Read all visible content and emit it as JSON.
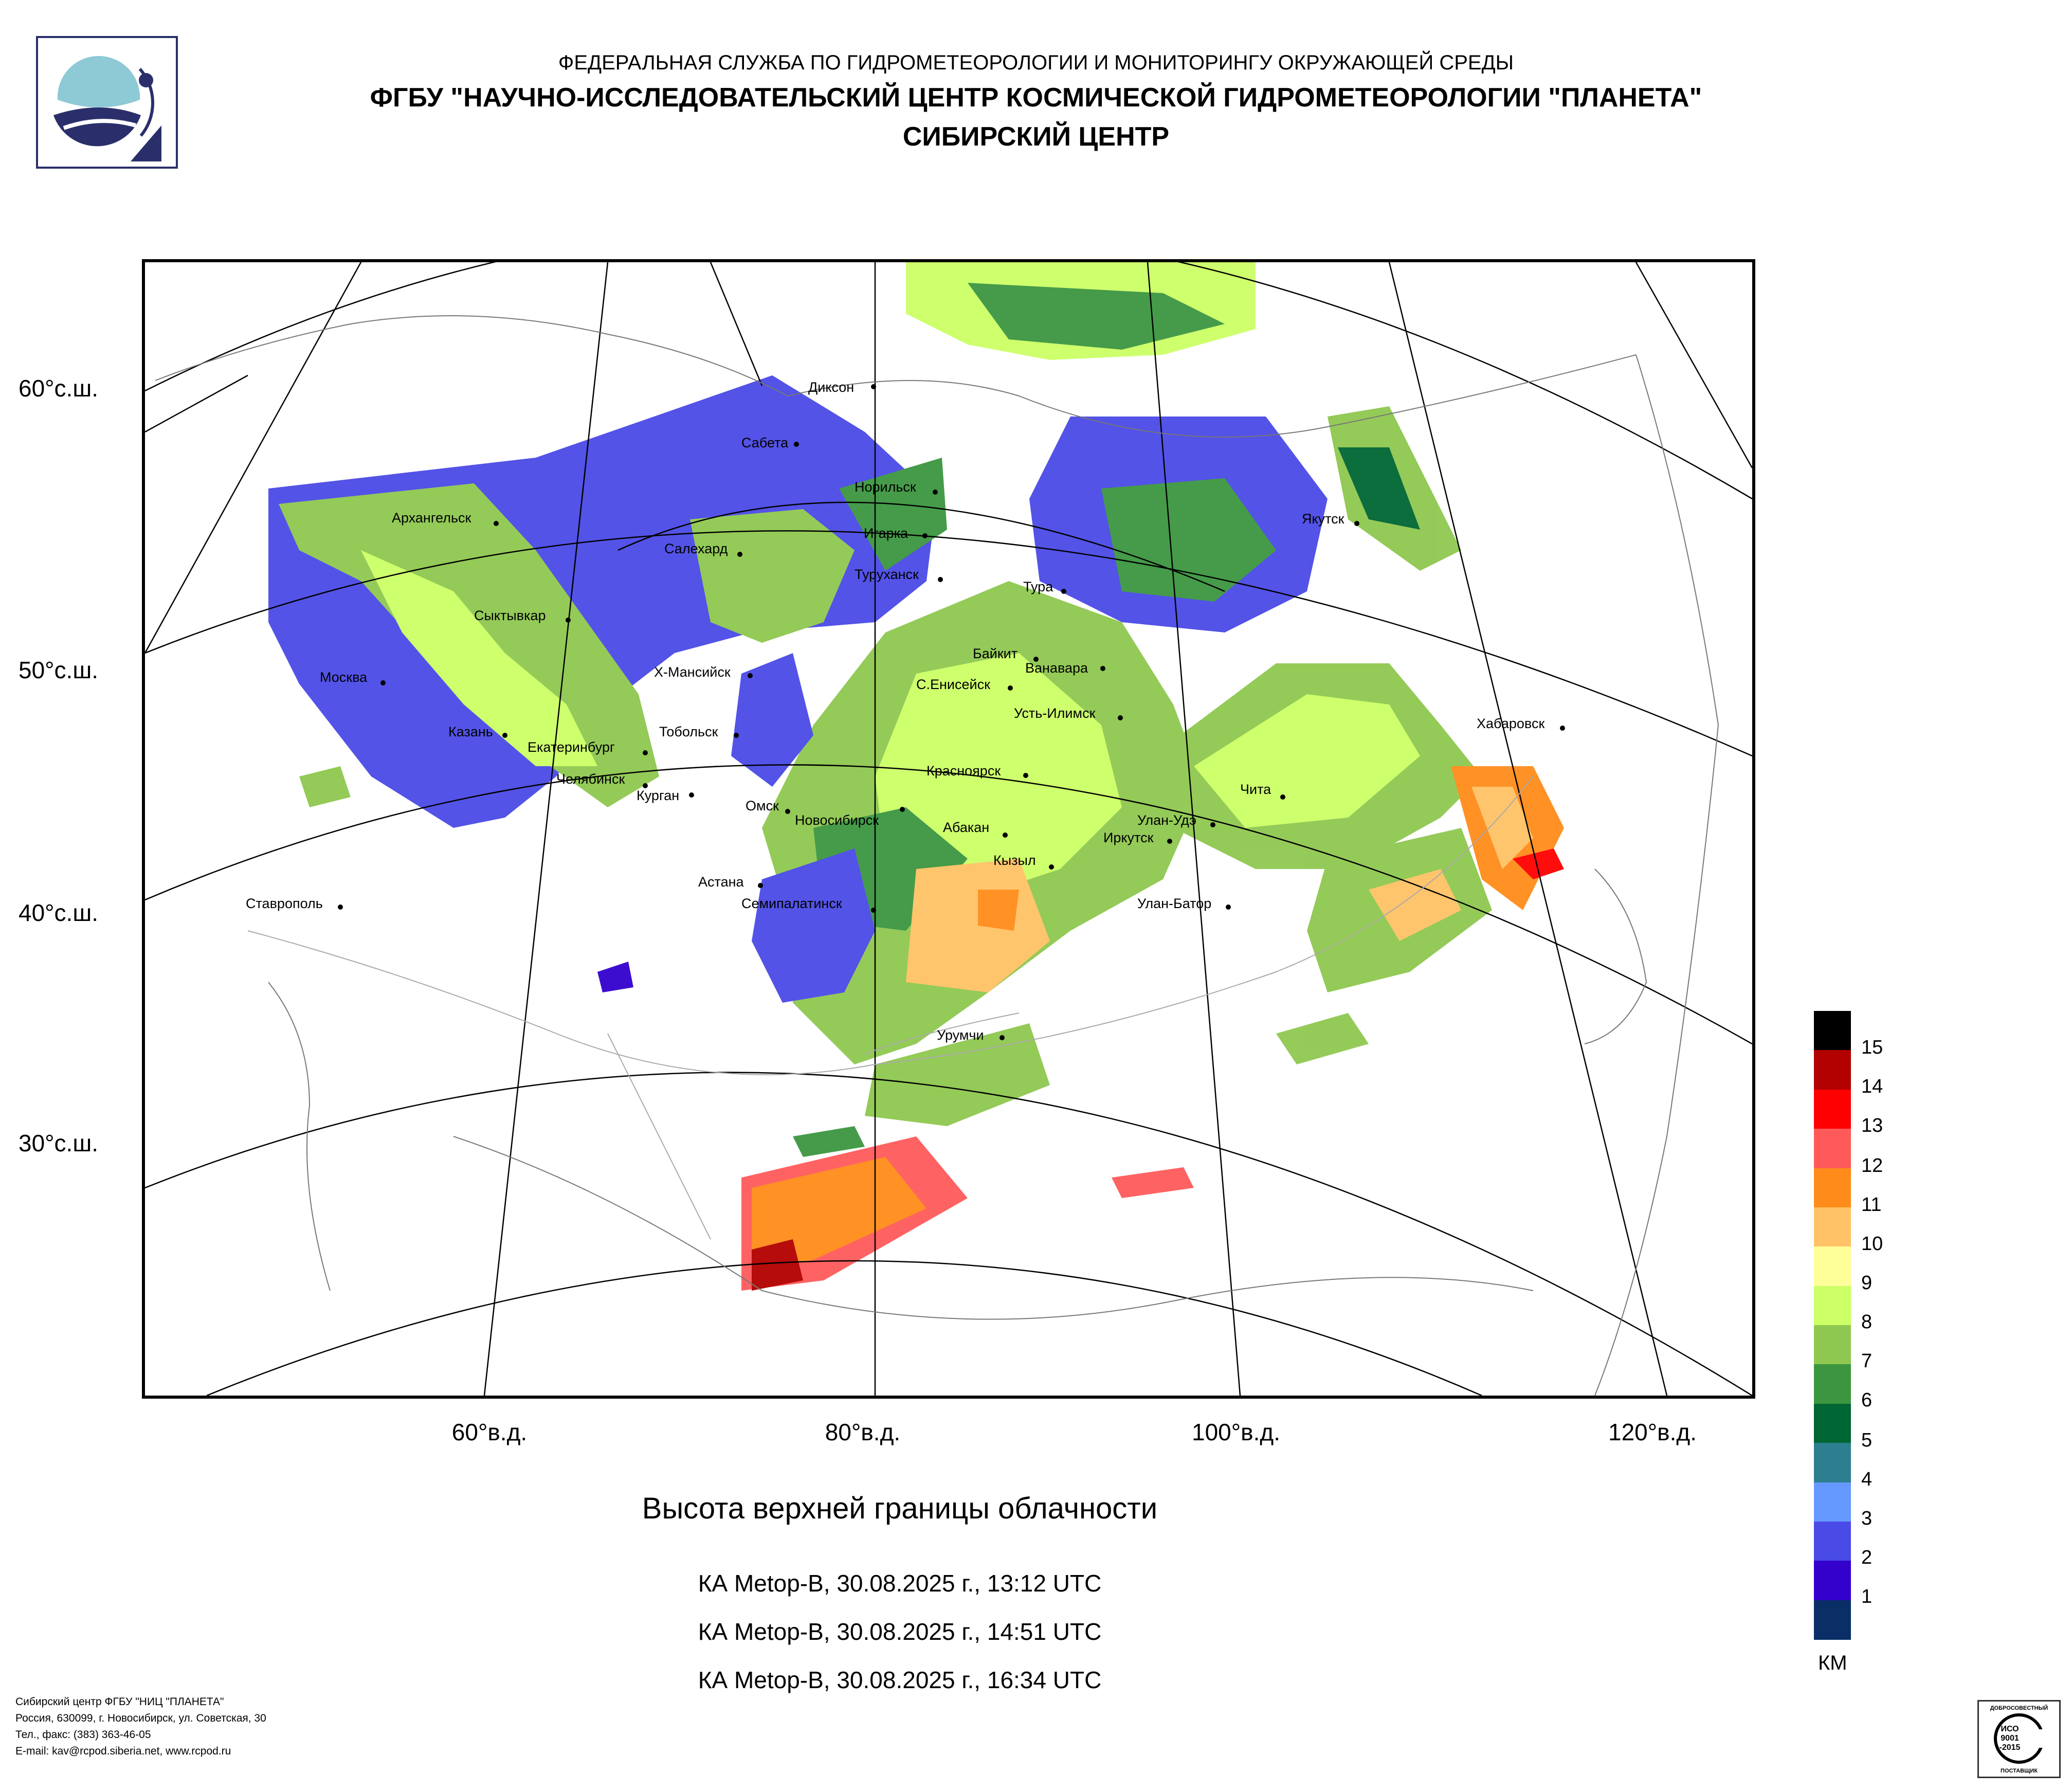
{
  "header": {
    "line1": "ФЕДЕРАЛЬНАЯ СЛУЖБА ПО ГИДРОМЕТЕОРОЛОГИИ И МОНИТОРИНГУ ОКРУЖАЮЩЕЙ СРЕДЫ",
    "line2": "ФГБУ \"НАУЧНО-ИССЛЕДОВАТЕЛЬСКИЙ ЦЕНТР КОСМИЧЕСКОЙ ГИДРОМЕТЕОРОЛОГИИ \"ПЛАНЕТА\"",
    "line3": "СИБИРСКИЙ ЦЕНТР"
  },
  "map": {
    "lat_labels": [
      "60°с.ш.",
      "50°с.ш.",
      "40°с.ш.",
      "30°с.ш."
    ],
    "lon_labels": [
      "60°в.д.",
      "80°в.д.",
      "100°в.д.",
      "120°в.д."
    ],
    "cities": {
      "dikson": "Диксон",
      "sabeta": "Сабета",
      "norilsk": "Норильск",
      "igarka": "Игарка",
      "turukhansk": "Туруханск",
      "tura": "Тура",
      "yakutsk": "Якутск",
      "arkhangelsk": "Архангельск",
      "salekhard": "Салехард",
      "syktyvkar": "Сыктывкар",
      "moskva": "Москва",
      "khmansiysk": "Х-Мансийск",
      "baikit": "Байкит",
      "vanavara": "Ванавара",
      "s_eniseysk": "С.Енисейск",
      "ust_ilimsk": "Усть-Илимск",
      "khabarovsk": "Хабаровск",
      "kazan": "Казань",
      "ekaterinburg": "Екатеринбург",
      "tobolsk": "Тобольск",
      "krasnoyarsk": "Красноярск",
      "chelyabinsk": "Челябинск",
      "kurgan": "Курган",
      "chita": "Чита",
      "omsk": "Омск",
      "novosibirsk": "Новосибирск",
      "abakan": "Абакан",
      "ulan_ude": "Улан-Удэ",
      "irkutsk": "Иркутск",
      "kyzyl": "Кызыл",
      "astana": "Астана",
      "stavropol": "Ставрополь",
      "semipalatinsk": "Семипалатинск",
      "ulan_bator": "Улан-Батор",
      "urumchi": "Урумчи"
    }
  },
  "caption": {
    "title": "Высота верхней границы облачности",
    "passes": [
      "КА Metop-B, 30.08.2025 г., 13:12 UTC",
      "КА Metop-B, 30.08.2025 г., 14:51 UTC",
      "КА Metop-B, 30.08.2025 г., 16:34 UTC"
    ]
  },
  "legend": {
    "unit": "КМ",
    "levels": [
      {
        "label": "",
        "color": "#000000"
      },
      {
        "label": "15",
        "color": "#b30000"
      },
      {
        "label": "14",
        "color": "#ff0000"
      },
      {
        "label": "13",
        "color": "#ff5a5a"
      },
      {
        "label": "12",
        "color": "#ff8c1a"
      },
      {
        "label": "11",
        "color": "#ffc266"
      },
      {
        "label": "10",
        "color": "#ffff99"
      },
      {
        "label": "9",
        "color": "#ccff66"
      },
      {
        "label": "8",
        "color": "#8fc850"
      },
      {
        "label": "7",
        "color": "#3c9640"
      },
      {
        "label": "6",
        "color": "#006633"
      },
      {
        "label": "5",
        "color": "#2d7f8f"
      },
      {
        "label": "4",
        "color": "#6699ff"
      },
      {
        "label": "3",
        "color": "#4a4ae6"
      },
      {
        "label": "2",
        "color": "#3300cc"
      },
      {
        "label": "1",
        "color": "#0a2f66"
      }
    ]
  },
  "contacts": {
    "line1": "Сибирский центр ФГБУ \"НИЦ \"ПЛАНЕТА\"",
    "line2": "Россия, 630099, г. Новосибирск, ул. Советская, 30",
    "line3": "Тел., факс: (383) 363-46-05",
    "line4": "E-mail: kav@rcpod.siberia.net, www.rcpod.ru"
  },
  "certificate": {
    "top": "ДОБРОСОВЕСТНЫЙ",
    "iso1": "ИСО",
    "iso2": "9001",
    "iso3": "-2015",
    "bottom": "ПОСТАВЩИК"
  }
}
